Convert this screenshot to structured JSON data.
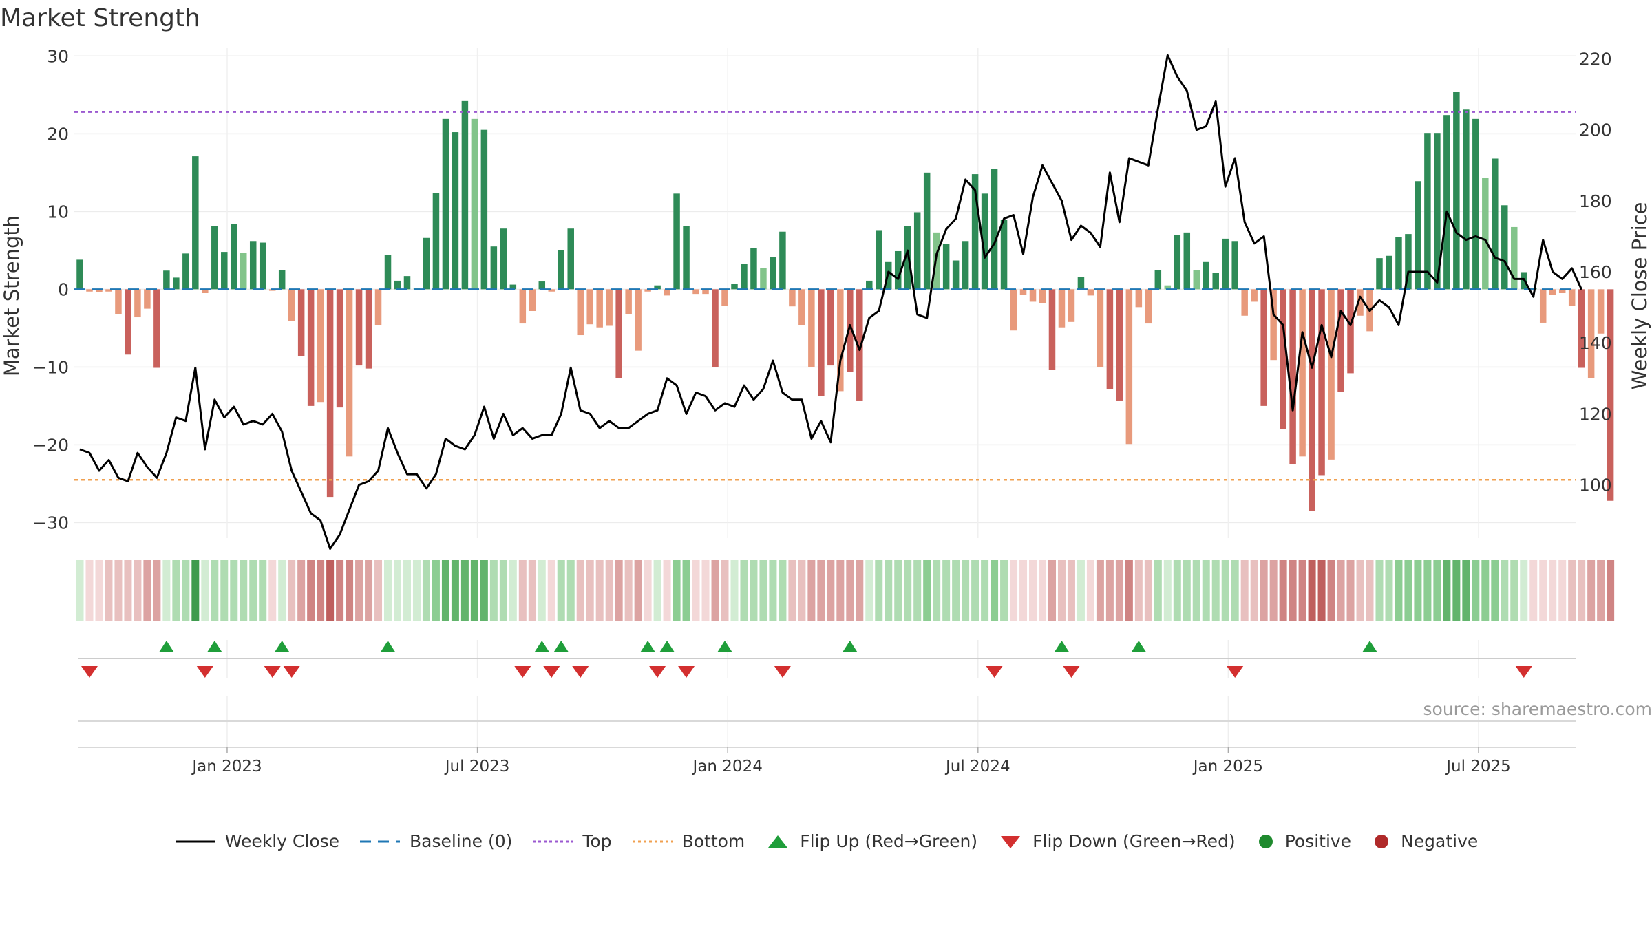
{
  "title": "Market Strength",
  "source": "source: sharemaestro.com",
  "colors": {
    "green_dark": "#2e8b57",
    "green_light": "#82c48a",
    "red_dark": "#c9615c",
    "red_light": "#e89a7c",
    "line": "#000000",
    "baseline": "#1f77b4",
    "top": "#9b59d0",
    "bottom": "#f0a050",
    "flip_up": "#1f9e3a",
    "flip_down": "#d32f2f"
  },
  "legend": {
    "weekly_close": "Weekly Close",
    "baseline": "Baseline (0)",
    "top": "Top",
    "bottom": "Bottom",
    "flip_up": "Flip Up (Red→Green)",
    "flip_down": "Flip Down (Green→Red)",
    "positive": "Positive",
    "negative": "Negative"
  },
  "chart_data": {
    "type": "bar",
    "title": "Market Strength",
    "ylabel": "Market Strength",
    "y2label": "Weekly Close Price",
    "ylim": [
      -32,
      31
    ],
    "y2lim": [
      85,
      223
    ],
    "yticks": [
      30,
      20,
      10,
      0,
      -10,
      -20,
      -30
    ],
    "y2ticks": [
      220,
      200,
      180,
      160,
      140,
      120,
      100
    ],
    "xtick_labels": [
      "Jan 2023",
      "Jul 2023",
      "Jan 2024",
      "Jul 2024",
      "Jan 2025",
      "Jul 2025"
    ],
    "xtick_weeks": [
      15.3,
      41.3,
      67.3,
      93.3,
      119.3,
      145.3
    ],
    "top_level": 22.8,
    "bottom_level": -24.5,
    "baseline": 0,
    "series": [
      {
        "name": "Market Strength",
        "values": [
          3.8,
          -0.3,
          -0.4,
          -0.3,
          -3.2,
          -8.4,
          -3.6,
          -2.5,
          -10.1,
          2.4,
          1.5,
          4.6,
          17.1,
          -0.5,
          8.1,
          4.8,
          8.4,
          4.7,
          6.2,
          6.0,
          -0.2,
          2.5,
          -4.1,
          -8.6,
          -15.0,
          -14.5,
          -26.7,
          -15.2,
          -21.5,
          -9.8,
          -10.2,
          -4.6,
          4.4,
          1.1,
          1.7,
          0.2,
          6.6,
          12.4,
          21.9,
          20.2,
          24.2,
          21.9,
          20.5,
          5.5,
          7.8,
          0.6,
          -4.4,
          -2.8,
          1.0,
          -0.3,
          5.0,
          7.8,
          -5.9,
          -4.5,
          -4.9,
          -4.7,
          -11.4,
          -3.2,
          -7.9,
          -0.3,
          0.5,
          -0.8,
          12.3,
          8.1,
          -0.6,
          -0.6,
          -10.0,
          -2.1,
          0.7,
          3.3,
          5.3,
          2.7,
          4.1,
          7.4,
          -2.2,
          -4.6,
          -10.0,
          -13.7,
          -9.8,
          -13.1,
          -10.6,
          -14.3,
          1.1,
          7.6,
          3.5,
          4.9,
          8.1,
          9.9,
          15.0,
          7.3,
          5.8,
          3.7,
          6.2,
          14.8,
          12.3,
          15.5,
          8.9,
          -5.3,
          -0.7,
          -1.6,
          -1.8,
          -10.4,
          -4.9,
          -4.2,
          1.6,
          -0.8,
          -10.0,
          -12.8,
          -14.3,
          -19.9,
          -2.3,
          -4.4,
          2.5,
          0.5,
          7.0,
          7.3,
          2.5,
          3.5,
          2.1,
          6.5,
          6.2,
          -3.4,
          -1.6,
          -15.0,
          -9.1,
          -18.0,
          -22.5,
          -21.5,
          -28.5,
          -23.9,
          -21.9,
          -13.2,
          -10.8,
          -3.4,
          -5.4,
          4.0,
          4.3,
          6.7,
          7.1,
          13.9,
          20.1,
          20.1,
          22.4,
          25.4,
          23.1,
          21.9,
          14.3,
          16.8,
          10.8,
          8.0,
          2.2,
          0.2,
          -4.3,
          -0.7,
          -0.5,
          -2.1,
          -10.1,
          -11.4,
          -5.7,
          -27.2
        ]
      },
      {
        "name": "Weekly Close",
        "values": [
          110,
          109,
          104,
          107,
          102,
          101,
          109,
          105,
          102,
          109,
          119,
          118,
          133,
          110,
          124,
          119,
          122,
          117,
          118,
          117,
          120,
          115,
          104,
          98,
          92,
          90,
          82,
          86,
          93,
          100,
          101,
          104,
          116,
          109,
          103,
          103,
          99,
          103,
          113,
          111,
          110,
          114,
          122,
          113,
          120,
          114,
          116,
          113,
          114,
          114,
          120,
          133,
          121,
          120,
          116,
          118,
          116,
          116,
          118,
          120,
          121,
          130,
          128,
          120,
          126,
          125,
          121,
          123,
          122,
          128,
          124,
          127,
          135,
          126,
          124,
          124,
          113,
          118,
          112,
          135,
          145,
          138,
          147,
          149,
          160,
          158,
          166,
          148,
          147,
          165,
          172,
          175,
          186,
          183,
          164,
          168,
          175,
          176,
          165,
          181,
          190,
          185,
          180,
          169,
          173,
          171,
          167,
          188,
          174,
          192,
          191,
          190,
          206,
          221,
          215,
          211,
          200,
          201,
          208,
          184,
          192,
          174,
          168,
          170,
          148,
          145,
          121,
          143,
          133,
          145,
          136,
          149,
          145,
          153,
          149,
          152,
          150,
          145,
          160,
          160,
          160,
          157,
          177,
          171,
          169,
          170,
          169,
          164,
          163,
          158,
          158,
          153,
          169,
          160,
          158,
          161,
          155
        ]
      },
      {
        "name": "Strength Strip",
        "values": [
          1,
          -1,
          -1,
          -2,
          -2,
          -2,
          -2,
          -3,
          -3,
          1,
          2,
          2,
          5,
          1,
          2,
          2,
          2,
          2,
          2,
          2,
          -1,
          1,
          -2,
          -3,
          -4,
          -4,
          -5,
          -4,
          -4,
          -3,
          -3,
          -2,
          1,
          1,
          1,
          1,
          2,
          3,
          4,
          4,
          4,
          4,
          4,
          2,
          2,
          1,
          -2,
          -2,
          1,
          -1,
          2,
          2,
          -2,
          -2,
          -2,
          -2,
          -3,
          -2,
          -3,
          -1,
          1,
          -1,
          3,
          3,
          -1,
          -1,
          -3,
          -2,
          1,
          2,
          2,
          2,
          2,
          2,
          -2,
          -2,
          -3,
          -3,
          -3,
          -3,
          -3,
          -3,
          1,
          2,
          2,
          2,
          2,
          2,
          3,
          2,
          2,
          2,
          2,
          2,
          2,
          3,
          2,
          -1,
          -1,
          -1,
          -1,
          -3,
          -2,
          -2,
          1,
          -1,
          -3,
          -3,
          -3,
          -4,
          -2,
          -2,
          2,
          1,
          2,
          2,
          2,
          2,
          2,
          2,
          2,
          -2,
          -2,
          -3,
          -3,
          -4,
          -4,
          -4,
          -5,
          -5,
          -4,
          -3,
          -3,
          -2,
          -2,
          2,
          2,
          3,
          3,
          3,
          3,
          3,
          4,
          4,
          4,
          3,
          3,
          3,
          2,
          2,
          1,
          -1,
          -1,
          -1,
          -1,
          -2,
          -2,
          -3,
          -3,
          -4
        ]
      },
      {
        "name": "Flip Up (Red→Green)",
        "weeks": [
          9,
          14,
          21,
          32,
          48,
          50,
          59,
          61,
          67,
          80,
          102,
          110,
          134
        ]
      },
      {
        "name": "Flip Down (Green→Red)",
        "weeks": [
          1,
          13,
          20,
          22,
          46,
          49,
          52,
          60,
          63,
          73,
          95,
          103,
          120,
          150
        ]
      }
    ]
  }
}
